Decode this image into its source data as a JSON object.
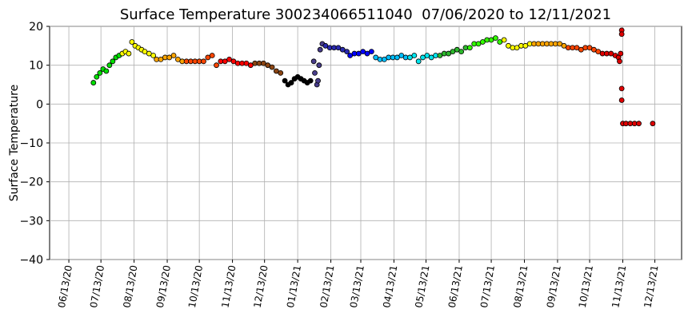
{
  "chart_data": {
    "type": "scatter",
    "title": "Surface Temperature 300234066511040  07/06/2020 to 12/11/2021",
    "y_label": "Surface Temperature",
    "xlim": [
      "2020-05-26",
      "2022-01-07"
    ],
    "xticks": [
      {
        "value": "2020-06-13",
        "label": "06/13/20"
      },
      {
        "value": "2020-07-13",
        "label": "07/13/20"
      },
      {
        "value": "2020-08-13",
        "label": "08/13/20"
      },
      {
        "value": "2020-09-13",
        "label": "09/13/20"
      },
      {
        "value": "2020-10-13",
        "label": "10/13/20"
      },
      {
        "value": "2020-11-13",
        "label": "11/13/20"
      },
      {
        "value": "2020-12-13",
        "label": "12/13/20"
      },
      {
        "value": "2021-01-13",
        "label": "01/13/21"
      },
      {
        "value": "2021-02-13",
        "label": "02/13/21"
      },
      {
        "value": "2021-03-13",
        "label": "03/13/21"
      },
      {
        "value": "2021-04-13",
        "label": "04/13/21"
      },
      {
        "value": "2021-05-13",
        "label": "05/13/21"
      },
      {
        "value": "2021-06-13",
        "label": "06/13/21"
      },
      {
        "value": "2021-07-13",
        "label": "07/13/21"
      },
      {
        "value": "2021-08-13",
        "label": "08/13/21"
      },
      {
        "value": "2021-09-13",
        "label": "09/13/21"
      },
      {
        "value": "2021-10-13",
        "label": "10/13/21"
      },
      {
        "value": "2021-11-13",
        "label": "11/13/21"
      },
      {
        "value": "2021-12-13",
        "label": "12/13/21"
      }
    ],
    "ylim": [
      -40,
      20
    ],
    "yticks": [
      {
        "value": -40,
        "label": "−40"
      },
      {
        "value": -30,
        "label": "−30"
      },
      {
        "value": -20,
        "label": "−20"
      },
      {
        "value": -10,
        "label": "−10"
      },
      0,
      10,
      20
    ],
    "grid": true,
    "series": [
      {
        "color": "#00e000",
        "x": [
          "2020-07-06",
          "2020-07-09",
          "2020-07-12",
          "2020-07-15",
          "2020-07-18",
          "2020-07-21",
          "2020-07-24",
          "2020-07-27",
          "2020-07-30"
        ],
        "values": [
          5.5,
          7,
          8,
          9,
          8.5,
          10,
          11,
          12,
          12.5
        ]
      },
      {
        "color": "#ffff00",
        "x": [
          "2020-08-02",
          "2020-08-05",
          "2020-08-08",
          "2020-08-11",
          "2020-08-14",
          "2020-08-17",
          "2020-08-20",
          "2020-08-23",
          "2020-08-27",
          "2020-08-31"
        ],
        "values": [
          13,
          13.5,
          13,
          16,
          15,
          14.5,
          14,
          13.5,
          13,
          12.5
        ]
      },
      {
        "color": "#ffa500",
        "x": [
          "2020-09-03",
          "2020-09-07",
          "2020-09-11",
          "2020-09-15",
          "2020-09-19",
          "2020-09-23",
          "2020-09-27"
        ],
        "values": [
          11.5,
          11.5,
          12,
          12,
          12.5,
          11.5,
          11
        ]
      },
      {
        "color": "#ff4500",
        "x": [
          "2020-10-01",
          "2020-10-05",
          "2020-10-09",
          "2020-10-13",
          "2020-10-17",
          "2020-10-21",
          "2020-10-25",
          "2020-10-29"
        ],
        "values": [
          11,
          11,
          11,
          11,
          11,
          12,
          12.5,
          10
        ]
      },
      {
        "color": "#ff0000",
        "x": [
          "2020-11-02",
          "2020-11-06",
          "2020-11-10",
          "2020-11-14",
          "2020-11-18",
          "2020-11-22",
          "2020-11-26",
          "2020-11-30"
        ],
        "values": [
          11,
          11,
          11.5,
          11,
          10.5,
          10.5,
          10.5,
          10
        ]
      },
      {
        "color": "#8b4513",
        "x": [
          "2020-12-04",
          "2020-12-08",
          "2020-12-12",
          "2020-12-16",
          "2020-12-20",
          "2020-12-24",
          "2020-12-28"
        ],
        "values": [
          10.5,
          10.5,
          10.5,
          10,
          9.5,
          8.5,
          8
        ]
      },
      {
        "color": "#000000",
        "x": [
          "2021-01-01",
          "2021-01-04",
          "2021-01-07",
          "2021-01-10",
          "2021-01-13",
          "2021-01-16",
          "2021-01-19",
          "2021-01-22",
          "2021-01-25"
        ],
        "values": [
          6,
          5,
          5.5,
          6.5,
          7,
          6.5,
          6,
          5.5,
          6
        ]
      },
      {
        "color": "#483d8b",
        "x": [
          "2021-01-28",
          "2021-01-29",
          "2021-01-31",
          "2021-02-01",
          "2021-02-02",
          "2021-02-03",
          "2021-02-05"
        ],
        "values": [
          11,
          8,
          5,
          6,
          10,
          14,
          15.5
        ]
      },
      {
        "color": "#2a2ab0",
        "x": [
          "2021-02-08",
          "2021-02-12",
          "2021-02-16",
          "2021-02-20",
          "2021-02-24",
          "2021-02-28"
        ],
        "values": [
          15,
          14.5,
          14.5,
          14.5,
          14,
          13.5
        ]
      },
      {
        "color": "#0000ff",
        "x": [
          "2021-03-03",
          "2021-03-07",
          "2021-03-11",
          "2021-03-15",
          "2021-03-19",
          "2021-03-23"
        ],
        "values": [
          12.5,
          13,
          13,
          13.5,
          13,
          13.5
        ]
      },
      {
        "color": "#00bfff",
        "x": [
          "2021-03-27",
          "2021-03-31",
          "2021-04-04",
          "2021-04-08",
          "2021-04-12",
          "2021-04-16",
          "2021-04-20",
          "2021-04-24"
        ],
        "values": [
          12,
          11.5,
          11.5,
          12,
          12,
          12,
          12.5,
          12
        ]
      },
      {
        "color": "#00e5ee",
        "x": [
          "2021-04-28",
          "2021-05-02",
          "2021-05-06",
          "2021-05-10",
          "2021-05-14",
          "2021-05-18",
          "2021-05-22"
        ],
        "values": [
          12,
          12.5,
          11,
          12,
          12.5,
          12,
          12.5
        ]
      },
      {
        "color": "#2db82d",
        "x": [
          "2021-05-26",
          "2021-05-30",
          "2021-06-03",
          "2021-06-07",
          "2021-06-11",
          "2021-06-15",
          "2021-06-19"
        ],
        "values": [
          12.5,
          13,
          13,
          13.5,
          14,
          13.5,
          14.5
        ]
      },
      {
        "color": "#33ff00",
        "x": [
          "2021-06-23",
          "2021-06-27",
          "2021-07-01",
          "2021-07-05",
          "2021-07-09",
          "2021-07-13",
          "2021-07-17",
          "2021-07-21"
        ],
        "values": [
          14.5,
          15.5,
          15.5,
          16,
          16.5,
          16.5,
          17,
          16
        ]
      },
      {
        "color": "#ffff00",
        "x": [
          "2021-07-25",
          "2021-07-29",
          "2021-08-02",
          "2021-08-06",
          "2021-08-10",
          "2021-08-14",
          "2021-08-18"
        ],
        "values": [
          16.5,
          15,
          14.5,
          14.5,
          15,
          15,
          15.5
        ]
      },
      {
        "color": "#ffa500",
        "x": [
          "2021-08-22",
          "2021-08-26",
          "2021-08-30",
          "2021-09-03",
          "2021-09-07",
          "2021-09-11",
          "2021-09-15",
          "2021-09-19"
        ],
        "values": [
          15.5,
          15.5,
          15.5,
          15.5,
          15.5,
          15.5,
          15.5,
          15
        ]
      },
      {
        "color": "#ff4500",
        "x": [
          "2021-09-23",
          "2021-09-27",
          "2021-10-01",
          "2021-10-05",
          "2021-10-09",
          "2021-10-13",
          "2021-10-17",
          "2021-10-21"
        ],
        "values": [
          14.5,
          14.5,
          14.5,
          14,
          14.5,
          14.5,
          14,
          13.5
        ]
      },
      {
        "color": "#e00000",
        "x": [
          "2021-10-25",
          "2021-10-29",
          "2021-11-02",
          "2021-11-06",
          "2021-11-09",
          "2021-11-10",
          "2021-11-11",
          "2021-11-12",
          "2021-11-12",
          "2021-11-12",
          "2021-11-12",
          "2021-11-13",
          "2021-11-16",
          "2021-11-20",
          "2021-11-24",
          "2021-11-28",
          "2021-12-11"
        ],
        "values": [
          13,
          13,
          13,
          12.5,
          12,
          11,
          13,
          19,
          18,
          4,
          1,
          -5,
          -5,
          -5,
          -5,
          -5,
          -5
        ]
      }
    ]
  }
}
